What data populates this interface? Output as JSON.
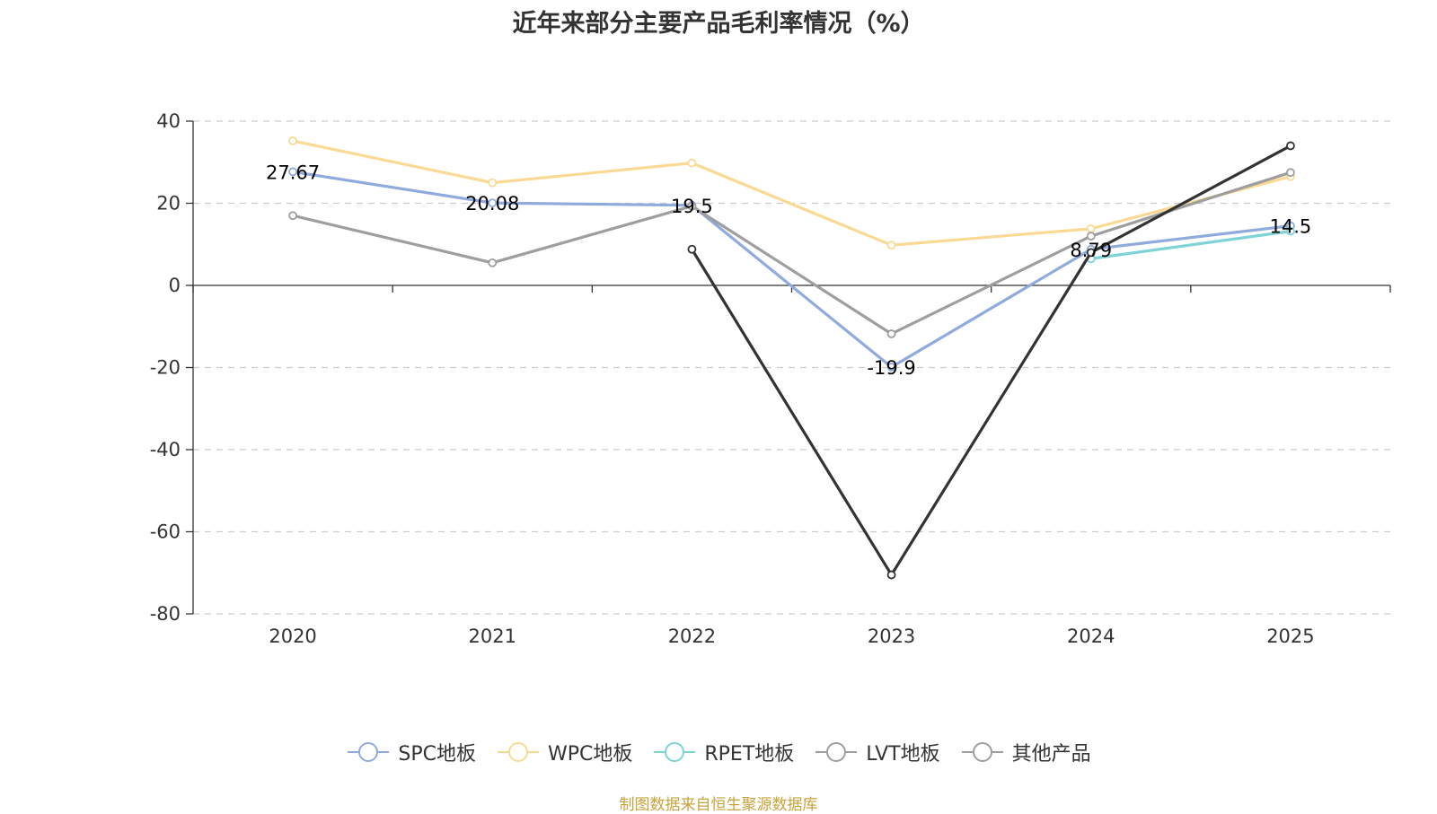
{
  "chart_data": {
    "type": "line",
    "title": "近年来部分主要产品毛利率情况（%）",
    "xlabel": "",
    "ylabel": "",
    "categories": [
      "2020",
      "2021",
      "2022",
      "2023",
      "2024",
      "2025"
    ],
    "ylim": [
      -80,
      40
    ],
    "yticks": [
      40,
      20,
      0,
      -20,
      -40,
      -60,
      -80
    ],
    "grid": true,
    "legend_position": "bottom",
    "series": [
      {
        "name": "SPC地板",
        "color": "#8faadc",
        "values": [
          27.67,
          20.08,
          19.5,
          -19.9,
          8.79,
          14.5
        ],
        "labels": [
          "27.67",
          "20.08",
          "19.5",
          "-19.9",
          "8.79",
          "14.5"
        ]
      },
      {
        "name": "WPC地板",
        "color": "#fad994",
        "values": [
          35.2,
          25.0,
          29.8,
          9.8,
          13.8,
          26.5
        ],
        "labels": null
      },
      {
        "name": "RPET地板",
        "color": "#7ed3d6",
        "values": [
          null,
          null,
          null,
          null,
          6.5,
          13.2
        ],
        "labels": null
      },
      {
        "name": "LVT地板",
        "color": "#9e9e9e",
        "values": [
          17.0,
          5.5,
          19.3,
          -11.8,
          12.0,
          27.5
        ],
        "labels": null
      },
      {
        "name": "其他产品",
        "color": "#333333",
        "values": [
          null,
          null,
          8.8,
          -70.5,
          8.0,
          34.0
        ],
        "labels": null
      }
    ],
    "legend_colors": [
      "#8faadc",
      "#fad994",
      "#7ed3d6",
      "#9e9e9e",
      "#9e9e9e"
    ]
  },
  "source_note": "制图数据来自恒生聚源数据库"
}
